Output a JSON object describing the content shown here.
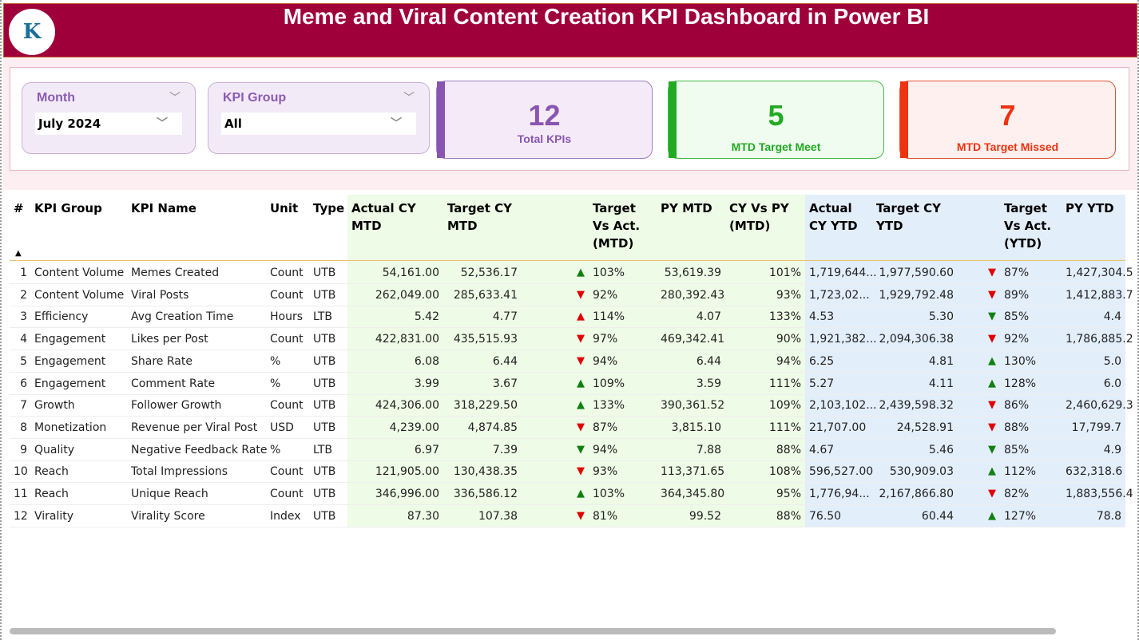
{
  "header": {
    "title": "Meme and Viral Content Creation KPI Dashboard in Power BI",
    "logo_text": "K"
  },
  "slicers": [
    {
      "label": "Month",
      "value": "July 2024"
    },
    {
      "label": "KPI Group",
      "value": "All"
    }
  ],
  "cards": [
    {
      "value": "12",
      "label": "Total KPIs",
      "color": "#8a55b0"
    },
    {
      "value": "5",
      "label": "MTD Target Meet",
      "color": "#22aa22"
    },
    {
      "value": "7",
      "label": "MTD Target Missed",
      "color": "#ee3311"
    }
  ],
  "table": {
    "columns": [
      "#",
      "KPI Group",
      "KPI Name",
      "Unit",
      "Type",
      "Actual CY MTD",
      "Target CY MTD",
      "",
      "Target Vs Act. (MTD)",
      "PY MTD",
      "CY Vs PY (MTD)",
      "Actual CY YTD",
      "Target CY YTD",
      "",
      "Target Vs Act. (YTD)",
      "PY YTD"
    ],
    "rows": [
      [
        "1",
        "Content Volume",
        "Memes Created",
        "Count",
        "UTB",
        "54,161.00",
        "52,536.17",
        "up-green",
        "103%",
        "53,619.39",
        "101%",
        "1,719,644...",
        "1,977,590.60",
        "down-red",
        "87%",
        "1,427,304.5"
      ],
      [
        "2",
        "Content Volume",
        "Viral Posts",
        "Count",
        "UTB",
        "262,049.00",
        "285,633.41",
        "down-red",
        "92%",
        "280,392.43",
        "93%",
        "1,723,02...",
        "1,929,792.48",
        "down-red",
        "89%",
        "1,412,883.7"
      ],
      [
        "3",
        "Efficiency",
        "Avg Creation Time",
        "Hours",
        "LTB",
        "5.42",
        "4.77",
        "up-red",
        "114%",
        "4.07",
        "133%",
        "4.53",
        "5.30",
        "down-green",
        "85%",
        "4.4"
      ],
      [
        "4",
        "Engagement",
        "Likes per Post",
        "Count",
        "UTB",
        "422,831.00",
        "435,515.93",
        "down-red",
        "97%",
        "469,342.41",
        "90%",
        "1,921,382...",
        "2,094,306.38",
        "down-red",
        "92%",
        "1,786,885.2"
      ],
      [
        "5",
        "Engagement",
        "Share Rate",
        "%",
        "UTB",
        "6.08",
        "6.44",
        "down-red",
        "94%",
        "6.44",
        "94%",
        "6.25",
        "4.81",
        "up-green",
        "130%",
        "5.0"
      ],
      [
        "6",
        "Engagement",
        "Comment Rate",
        "%",
        "UTB",
        "3.99",
        "3.67",
        "up-green",
        "109%",
        "3.59",
        "111%",
        "5.27",
        "4.11",
        "up-green",
        "128%",
        "6.0"
      ],
      [
        "7",
        "Growth",
        "Follower Growth",
        "Count",
        "UTB",
        "424,306.00",
        "318,229.50",
        "up-green",
        "133%",
        "390,361.52",
        "109%",
        "2,103,102...",
        "2,439,598.32",
        "down-red",
        "86%",
        "2,460,629.3"
      ],
      [
        "8",
        "Monetization",
        "Revenue per Viral Post",
        "USD",
        "UTB",
        "4,239.00",
        "4,874.85",
        "down-red",
        "87%",
        "3,815.10",
        "111%",
        "21,707.00",
        "24,528.91",
        "down-red",
        "88%",
        "17,799.7"
      ],
      [
        "9",
        "Quality",
        "Negative Feedback Rate",
        "%",
        "LTB",
        "6.97",
        "7.39",
        "down-green",
        "94%",
        "7.88",
        "88%",
        "4.67",
        "5.46",
        "down-green",
        "85%",
        "4.9"
      ],
      [
        "10",
        "Reach",
        "Total Impressions",
        "Count",
        "UTB",
        "121,905.00",
        "130,438.35",
        "down-red",
        "93%",
        "113,371.65",
        "108%",
        "596,527.00",
        "530,909.03",
        "up-green",
        "112%",
        "632,318.6"
      ],
      [
        "11",
        "Reach",
        "Unique Reach",
        "Count",
        "UTB",
        "346,996.00",
        "336,586.12",
        "up-green",
        "103%",
        "364,345.80",
        "95%",
        "1,776,94...",
        "2,167,866.80",
        "down-red",
        "82%",
        "1,883,556.4"
      ],
      [
        "12",
        "Virality",
        "Virality Score",
        "Index",
        "UTB",
        "87.30",
        "107.38",
        "down-red",
        "81%",
        "99.52",
        "88%",
        "76.50",
        "60.44",
        "up-green",
        "127%",
        "78.8"
      ]
    ]
  },
  "colors": {
    "red": "#e00000",
    "green": "#108010",
    "header_bg": "#a0003a"
  }
}
